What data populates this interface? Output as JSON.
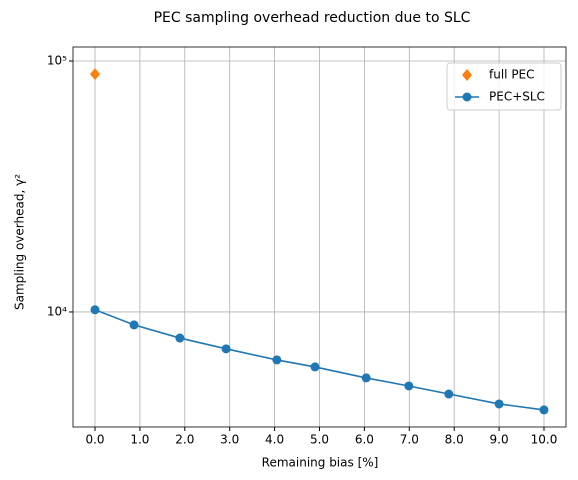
{
  "chart_data": {
    "type": "line",
    "title": "PEC sampling overhead reduction due to SLC",
    "x_label": "Remaining bias [%]",
    "y_label": "Sampling overhead, γ²",
    "log_y": true,
    "grid": true,
    "legend": "upper right",
    "xlim": [
      -0.49,
      10.49
    ],
    "ylim": [
      3480,
      113700
    ],
    "xticks": [
      {
        "value": 0,
        "label": "0.0"
      },
      {
        "value": 1,
        "label": "1.0"
      },
      {
        "value": 2,
        "label": "2.0"
      },
      {
        "value": 3,
        "label": "3.0"
      },
      {
        "value": 4,
        "label": "4.0"
      },
      {
        "value": 5,
        "label": "5.0"
      },
      {
        "value": 6,
        "label": "6.0"
      },
      {
        "value": 7,
        "label": "7.0"
      },
      {
        "value": 8,
        "label": "8.0"
      },
      {
        "value": 9,
        "label": "9.0"
      },
      {
        "value": 10,
        "label": "10.0"
      }
    ],
    "yticks": [
      {
        "value": 10000,
        "label": "10⁴"
      },
      {
        "value": 100000,
        "label": "10⁵"
      }
    ],
    "series": [
      {
        "name": "full PEC",
        "color": "#ff7f0e",
        "marker": "diamond",
        "line": false,
        "x": [
          0
        ],
        "values": [
          88700
        ]
      },
      {
        "name": "PEC+SLC",
        "color": "#1f77b4",
        "marker": "circle",
        "line": true,
        "x": [
          0,
          0.87,
          1.89,
          2.92,
          4.05,
          4.9,
          6.04,
          6.99,
          7.88,
          9.0,
          10.0
        ],
        "values": [
          10200,
          8880,
          7870,
          7130,
          6440,
          6040,
          5460,
          5070,
          4710,
          4300,
          4070
        ]
      }
    ]
  }
}
